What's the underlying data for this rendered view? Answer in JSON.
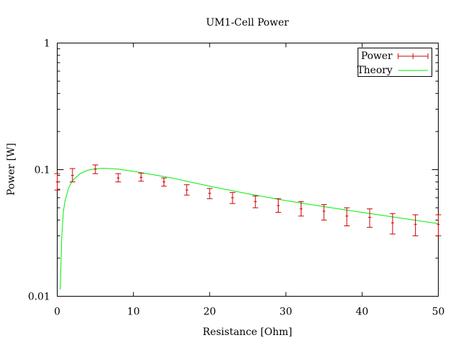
{
  "chart_data": {
    "type": "scatter",
    "title": "UM1-Cell Power",
    "xlabel": "Resistance [Ohm]",
    "ylabel": "Power [W]",
    "xlim": [
      0,
      50
    ],
    "ylim": [
      0.01,
      1
    ],
    "yscale": "log",
    "grid": false,
    "legend_position": "top-right",
    "x_ticks": [
      0,
      10,
      20,
      30,
      40,
      50
    ],
    "x_tick_labels": [
      "0",
      "10",
      "20",
      "30",
      "40",
      "50"
    ],
    "y_ticks": [
      0.01,
      0.1,
      1
    ],
    "y_tick_labels": [
      "0.01",
      "0.1",
      "1"
    ],
    "series": [
      {
        "name": "Power",
        "kind": "errorbar",
        "color": "#cc0000",
        "points": [
          {
            "x": 0,
            "y": 0.08,
            "ylo": 0.069,
            "yhi": 0.093
          },
          {
            "x": 2,
            "y": 0.09,
            "ylo": 0.08,
            "yhi": 0.102
          },
          {
            "x": 5,
            "y": 0.101,
            "ylo": 0.093,
            "yhi": 0.109
          },
          {
            "x": 8,
            "y": 0.086,
            "ylo": 0.08,
            "yhi": 0.093
          },
          {
            "x": 11,
            "y": 0.087,
            "ylo": 0.081,
            "yhi": 0.094
          },
          {
            "x": 14,
            "y": 0.08,
            "ylo": 0.074,
            "yhi": 0.086
          },
          {
            "x": 17,
            "y": 0.069,
            "ylo": 0.063,
            "yhi": 0.076
          },
          {
            "x": 20,
            "y": 0.065,
            "ylo": 0.059,
            "yhi": 0.071
          },
          {
            "x": 23,
            "y": 0.06,
            "ylo": 0.054,
            "yhi": 0.066
          },
          {
            "x": 26,
            "y": 0.056,
            "ylo": 0.05,
            "yhi": 0.062
          },
          {
            "x": 29,
            "y": 0.052,
            "ylo": 0.046,
            "yhi": 0.059
          },
          {
            "x": 32,
            "y": 0.049,
            "ylo": 0.043,
            "yhi": 0.056
          },
          {
            "x": 35,
            "y": 0.047,
            "ylo": 0.04,
            "yhi": 0.053
          },
          {
            "x": 38,
            "y": 0.043,
            "ylo": 0.036,
            "yhi": 0.05
          },
          {
            "x": 41,
            "y": 0.042,
            "ylo": 0.035,
            "yhi": 0.049
          },
          {
            "x": 44,
            "y": 0.038,
            "ylo": 0.031,
            "yhi": 0.045
          },
          {
            "x": 47,
            "y": 0.037,
            "ylo": 0.03,
            "yhi": 0.044
          },
          {
            "x": 50,
            "y": 0.037,
            "ylo": 0.03,
            "yhi": 0.044
          }
        ]
      },
      {
        "name": "Theory",
        "kind": "line",
        "color": "#00ee00",
        "x": [
          0.4,
          0.6,
          0.8,
          1.0,
          1.5,
          2.0,
          3.0,
          4.0,
          5.0,
          6.0,
          7.0,
          8.0,
          10.0,
          12.0,
          15.0,
          20.0,
          25.0,
          30.0,
          35.0,
          40.0,
          45.0,
          50.0
        ],
        "y": [
          0.0113,
          0.03,
          0.046,
          0.056,
          0.072,
          0.082,
          0.093,
          0.099,
          0.1015,
          0.1025,
          0.102,
          0.101,
          0.097,
          0.0925,
          0.086,
          0.074,
          0.0645,
          0.057,
          0.051,
          0.046,
          0.0415,
          0.0375
        ]
      }
    ]
  }
}
